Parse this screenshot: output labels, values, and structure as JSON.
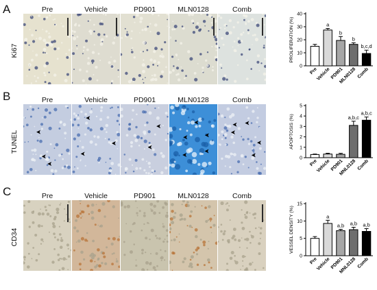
{
  "figure": {
    "panels": [
      {
        "letter": "A",
        "stain": "Ki67",
        "conditions": [
          "Pre",
          "Vehicle",
          "PD901",
          "MLN0128",
          "Comb"
        ],
        "tile_colors": [
          "#e6e2cf",
          "#dedcd0",
          "#e2e0d2",
          "#dcdcd0",
          "#dde2df"
        ],
        "scale_bars": [
          true,
          true,
          false,
          true,
          true
        ]
      },
      {
        "letter": "B",
        "stain": "TUNEL",
        "conditions": [
          "Pre",
          "Vehicle",
          "PD901",
          "MLN0128",
          "Comb"
        ],
        "tile_colors": [
          "#c4cde0",
          "#c6cfe2",
          "#c9cfdf",
          "#3d8fd8",
          "#c3cce1"
        ],
        "scale_bars": [
          false,
          false,
          false,
          false,
          false
        ]
      },
      {
        "letter": "C",
        "stain": "CD34",
        "conditions": [
          "Pre",
          "Vehicle",
          "PD901",
          "MLN0128",
          "Comb"
        ],
        "tile_colors": [
          "#d8d2c0",
          "#d2b79a",
          "#c9c4ae",
          "#d4c5ac",
          "#d9d1bf"
        ],
        "scale_bars": [
          true,
          false,
          false,
          false,
          true
        ]
      }
    ]
  },
  "chart_data": [
    {
      "type": "bar",
      "categories": [
        "Pre",
        "Vehicle",
        "PD901",
        "MLN0128",
        "Comb"
      ],
      "values": [
        15,
        27.5,
        19.5,
        16.5,
        9.5
      ],
      "errors": [
        1.5,
        1.2,
        3,
        1.2,
        2.5
      ],
      "bar_colors": [
        "#ffffff",
        "#d9d9d9",
        "#a6a6a6",
        "#6e6e6e",
        "#000000"
      ],
      "annotations": [
        "",
        "a",
        "b",
        "b",
        "b,c,d"
      ],
      "ylabel": "PROLIFERATION (%)",
      "ylim": [
        0,
        40
      ],
      "yticks": [
        0,
        10,
        20,
        30,
        40
      ]
    },
    {
      "type": "bar",
      "categories": [
        "Pre",
        "Vehicle",
        "PD901",
        "MNL0128",
        "Comb"
      ],
      "values": [
        0.3,
        0.35,
        0.32,
        3.1,
        3.6
      ],
      "errors": [
        0.05,
        0.08,
        0.1,
        0.4,
        0.3
      ],
      "bar_colors": [
        "#ffffff",
        "#d9d9d9",
        "#a6a6a6",
        "#6e6e6e",
        "#000000"
      ],
      "annotations": [
        "",
        "",
        "",
        "a,b,c",
        "a,b,c"
      ],
      "ylabel": "APOPTOSIS (%)",
      "ylim": [
        0,
        5
      ],
      "yticks": [
        0,
        1,
        2,
        3,
        4,
        5
      ]
    },
    {
      "type": "bar",
      "categories": [
        "Pre",
        "Vehicle",
        "PD901",
        "MNL0128",
        "Comb"
      ],
      "values": [
        5,
        9.3,
        7.2,
        7.5,
        7
      ],
      "errors": [
        0.5,
        0.9,
        0.4,
        0.7,
        0.8
      ],
      "bar_colors": [
        "#ffffff",
        "#d9d9d9",
        "#a6a6a6",
        "#6e6e6e",
        "#000000"
      ],
      "annotations": [
        "",
        "a",
        "a,b",
        "a,b",
        "a,b"
      ],
      "ylabel": "VESSEL DENSITY (%)",
      "ylim": [
        0,
        15
      ],
      "yticks": [
        0,
        5,
        10,
        15
      ]
    }
  ]
}
